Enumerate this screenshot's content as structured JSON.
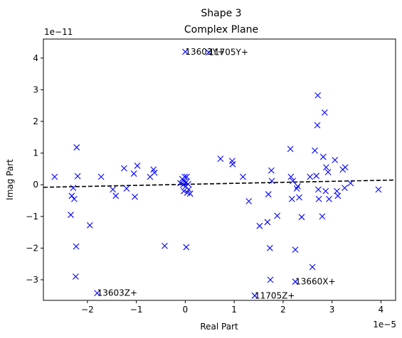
{
  "chart_data": {
    "type": "scatter",
    "title": "Shape 3",
    "subtitle": "Complex Plane",
    "xlabel": "Real Part",
    "ylabel": "Imag Part",
    "x_multiplier": "1e−5",
    "y_multiplier": "1e−11",
    "xlim": [
      -2.9,
      4.3
    ],
    "ylim": [
      -3.65,
      4.6
    ],
    "x_ticks": [
      -2,
      -1,
      0,
      1,
      2,
      3,
      4
    ],
    "y_ticks": [
      -3,
      -2,
      -1,
      0,
      1,
      2,
      3,
      4
    ],
    "grid": false,
    "marker": "x",
    "marker_color": "#0000ff",
    "trend_line": {
      "style": "dashed",
      "color": "#000000",
      "x": [
        -2.9,
        4.3
      ],
      "y": [
        -0.08,
        0.15
      ]
    },
    "points": [
      {
        "x": -2.67,
        "y": 0.25
      },
      {
        "x": -2.34,
        "y": -0.95
      },
      {
        "x": -2.32,
        "y": -0.35
      },
      {
        "x": -2.29,
        "y": -0.1
      },
      {
        "x": -2.27,
        "y": -0.45
      },
      {
        "x": -2.24,
        "y": -2.9
      },
      {
        "x": -2.23,
        "y": -1.95
      },
      {
        "x": -2.22,
        "y": 1.18
      },
      {
        "x": -2.2,
        "y": 0.27
      },
      {
        "x": -1.95,
        "y": -1.28
      },
      {
        "x": -1.8,
        "y": -3.42
      },
      {
        "x": -1.72,
        "y": 0.25
      },
      {
        "x": -1.48,
        "y": -0.15
      },
      {
        "x": -1.42,
        "y": -0.35
      },
      {
        "x": -1.25,
        "y": 0.52
      },
      {
        "x": -1.2,
        "y": -0.12
      },
      {
        "x": -1.05,
        "y": 0.35
      },
      {
        "x": -1.03,
        "y": -0.38
      },
      {
        "x": -0.98,
        "y": 0.6
      },
      {
        "x": -0.72,
        "y": 0.25
      },
      {
        "x": -0.65,
        "y": 0.48
      },
      {
        "x": -0.63,
        "y": 0.38
      },
      {
        "x": -0.42,
        "y": -1.93
      },
      {
        "x": -0.1,
        "y": 0.05
      },
      {
        "x": -0.06,
        "y": 0.18
      },
      {
        "x": -0.04,
        "y": 0.0
      },
      {
        "x": -0.03,
        "y": -0.2
      },
      {
        "x": -0.02,
        "y": 0.1
      },
      {
        "x": -0.01,
        "y": 0.25
      },
      {
        "x": 0.0,
        "y": 4.2
      },
      {
        "x": 0.01,
        "y": -0.05
      },
      {
        "x": 0.02,
        "y": 0.08
      },
      {
        "x": 0.03,
        "y": 0.25
      },
      {
        "x": 0.02,
        "y": -1.97
      },
      {
        "x": 0.04,
        "y": -0.25
      },
      {
        "x": 0.06,
        "y": 0.02
      },
      {
        "x": 0.07,
        "y": -0.15
      },
      {
        "x": 0.1,
        "y": -0.28
      },
      {
        "x": 0.48,
        "y": 4.18
      },
      {
        "x": 0.72,
        "y": 0.82
      },
      {
        "x": 0.96,
        "y": 0.75
      },
      {
        "x": 0.97,
        "y": 0.65
      },
      {
        "x": 1.18,
        "y": 0.25
      },
      {
        "x": 1.3,
        "y": -0.52
      },
      {
        "x": 1.52,
        "y": -1.3
      },
      {
        "x": 1.68,
        "y": -1.18
      },
      {
        "x": 1.7,
        "y": -0.3
      },
      {
        "x": 1.73,
        "y": -2.0
      },
      {
        "x": 1.74,
        "y": -3.0
      },
      {
        "x": 1.76,
        "y": 0.45
      },
      {
        "x": 1.77,
        "y": 0.12
      },
      {
        "x": 1.42,
        "y": -3.5
      },
      {
        "x": 1.88,
        "y": -0.98
      },
      {
        "x": 2.15,
        "y": 1.13
      },
      {
        "x": 2.16,
        "y": 0.25
      },
      {
        "x": 2.18,
        "y": -0.45
      },
      {
        "x": 2.2,
        "y": 0.12
      },
      {
        "x": 2.25,
        "y": -2.05
      },
      {
        "x": 2.25,
        "y": -3.06
      },
      {
        "x": 2.28,
        "y": -0.12
      },
      {
        "x": 2.3,
        "y": -0.05
      },
      {
        "x": 2.33,
        "y": -0.4
      },
      {
        "x": 2.38,
        "y": -1.02
      },
      {
        "x": 2.55,
        "y": 0.25
      },
      {
        "x": 2.6,
        "y": -2.6
      },
      {
        "x": 2.65,
        "y": 1.08
      },
      {
        "x": 2.68,
        "y": 0.28
      },
      {
        "x": 2.7,
        "y": 1.88
      },
      {
        "x": 2.71,
        "y": 2.82
      },
      {
        "x": 2.72,
        "y": -0.15
      },
      {
        "x": 2.73,
        "y": -0.45
      },
      {
        "x": 2.8,
        "y": -1.0
      },
      {
        "x": 2.82,
        "y": 0.88
      },
      {
        "x": 2.85,
        "y": 2.28
      },
      {
        "x": 2.87,
        "y": -0.2
      },
      {
        "x": 2.88,
        "y": 0.55
      },
      {
        "x": 2.92,
        "y": 0.4
      },
      {
        "x": 2.94,
        "y": -0.45
      },
      {
        "x": 3.06,
        "y": 0.78
      },
      {
        "x": 3.1,
        "y": -0.2
      },
      {
        "x": 3.12,
        "y": -0.35
      },
      {
        "x": 3.22,
        "y": 0.48
      },
      {
        "x": 3.27,
        "y": 0.55
      },
      {
        "x": 3.26,
        "y": -0.1
      },
      {
        "x": 3.38,
        "y": 0.05
      },
      {
        "x": 3.95,
        "y": -0.15
      }
    ],
    "annotations": [
      {
        "text": "13603Y+",
        "x": 0.0,
        "y": 4.2
      },
      {
        "text": "11705Y+",
        "x": 0.48,
        "y": 4.18
      },
      {
        "text": "13603Z+",
        "x": -1.8,
        "y": -3.42
      },
      {
        "text": "11705Z+",
        "x": 1.42,
        "y": -3.5
      },
      {
        "text": "13660X+",
        "x": 2.25,
        "y": -3.06
      }
    ]
  }
}
